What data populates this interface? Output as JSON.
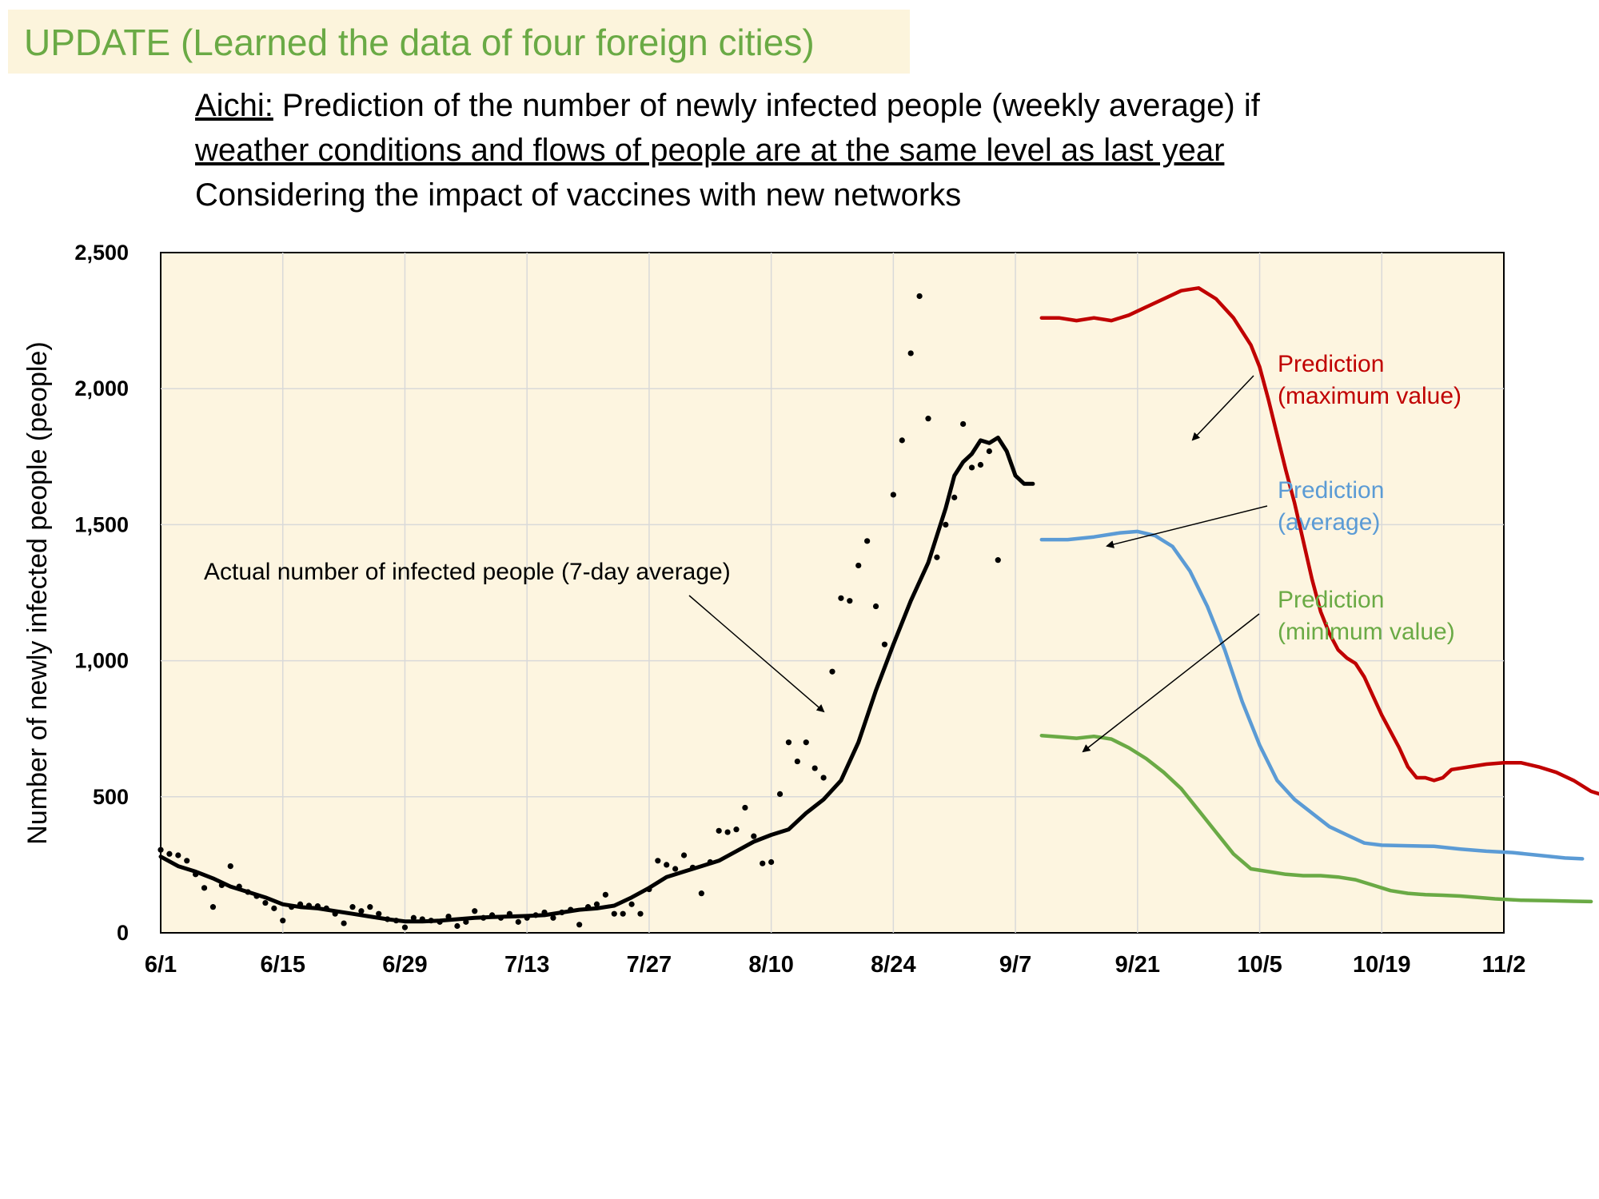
{
  "banner": {
    "text": "UPDATE (Learned the data of four foreign cities)",
    "color": "#6aaa45",
    "background": "#fcf4dc"
  },
  "title": {
    "line1_prefix": "Aichi:",
    "line1_rest": " Prediction of the number of newly infected people (weekly average) if",
    "line2": "weather conditions and flows of people are at the same level as last year",
    "line3": "Considering the impact of vaccines with new networks"
  },
  "chart_data": {
    "type": "line",
    "title": "",
    "xlabel": "",
    "ylabel": "Number of newly infected people (people)",
    "x_axis": {
      "start": "6/1",
      "end": "11/2",
      "ticks": [
        "6/1",
        "6/15",
        "6/29",
        "7/13",
        "7/27",
        "8/10",
        "8/24",
        "9/7",
        "9/21",
        "10/5",
        "10/19",
        "11/2"
      ]
    },
    "y_axis": {
      "range": [
        0,
        2500
      ],
      "ticks": [
        "0",
        "500",
        "1,000",
        "1,500",
        "2,000",
        "2,500"
      ]
    },
    "grid": true,
    "plot_background": "#fdf5e0",
    "annotations": {
      "actual": "Actual number of infected people (7-day average)",
      "max": [
        "Prediction",
        "(maximum value)"
      ],
      "avg": [
        "Prediction",
        "(average)"
      ],
      "min": [
        "Prediction",
        "(minimum value)"
      ]
    },
    "series": [
      {
        "key": "actual",
        "color": "#000000",
        "points": [
          [
            0,
            280
          ],
          [
            2,
            245
          ],
          [
            4,
            225
          ],
          [
            6,
            200
          ],
          [
            8,
            170
          ],
          [
            10,
            150
          ],
          [
            12,
            130
          ],
          [
            14,
            105
          ],
          [
            16,
            95
          ],
          [
            18,
            90
          ],
          [
            20,
            80
          ],
          [
            22,
            70
          ],
          [
            24,
            60
          ],
          [
            26,
            50
          ],
          [
            28,
            42
          ],
          [
            30,
            42
          ],
          [
            32,
            45
          ],
          [
            34,
            50
          ],
          [
            36,
            55
          ],
          [
            38,
            58
          ],
          [
            40,
            60
          ],
          [
            42,
            62
          ],
          [
            44,
            65
          ],
          [
            46,
            75
          ],
          [
            48,
            85
          ],
          [
            50,
            90
          ],
          [
            52,
            100
          ],
          [
            54,
            130
          ],
          [
            56,
            165
          ],
          [
            58,
            205
          ],
          [
            60,
            225
          ],
          [
            62,
            245
          ],
          [
            64,
            265
          ],
          [
            66,
            300
          ],
          [
            68,
            335
          ],
          [
            70,
            360
          ],
          [
            72,
            380
          ],
          [
            74,
            440
          ],
          [
            76,
            490
          ],
          [
            78,
            560
          ],
          [
            80,
            700
          ],
          [
            82,
            890
          ],
          [
            84,
            1060
          ],
          [
            86,
            1220
          ],
          [
            88,
            1360
          ],
          [
            90,
            1560
          ],
          [
            91,
            1680
          ],
          [
            92,
            1730
          ],
          [
            93,
            1760
          ],
          [
            94,
            1810
          ],
          [
            95,
            1800
          ],
          [
            96,
            1820
          ],
          [
            97,
            1770
          ],
          [
            98,
            1680
          ],
          [
            99,
            1650
          ],
          [
            100,
            1650
          ]
        ]
      },
      {
        "key": "max",
        "color": "#c00000",
        "points": [
          [
            101,
            2260
          ],
          [
            103,
            2260
          ],
          [
            105,
            2250
          ],
          [
            107,
            2260
          ],
          [
            109,
            2250
          ],
          [
            111,
            2270
          ],
          [
            113,
            2300
          ],
          [
            115,
            2330
          ],
          [
            117,
            2360
          ],
          [
            119,
            2370
          ],
          [
            121,
            2330
          ],
          [
            123,
            2260
          ],
          [
            125,
            2160
          ],
          [
            126,
            2080
          ],
          [
            127,
            1960
          ],
          [
            128,
            1830
          ],
          [
            129,
            1700
          ],
          [
            130,
            1580
          ],
          [
            131,
            1440
          ],
          [
            132,
            1300
          ],
          [
            133,
            1180
          ],
          [
            134,
            1100
          ],
          [
            135,
            1040
          ],
          [
            136,
            1010
          ],
          [
            137,
            990
          ],
          [
            138,
            940
          ],
          [
            139,
            870
          ],
          [
            140,
            800
          ],
          [
            141,
            740
          ],
          [
            142,
            680
          ],
          [
            143,
            610
          ],
          [
            144,
            570
          ],
          [
            145,
            570
          ],
          [
            146,
            560
          ],
          [
            147,
            570
          ],
          [
            148,
            600
          ],
          [
            150,
            610
          ],
          [
            152,
            620
          ],
          [
            154,
            625
          ],
          [
            156,
            625
          ],
          [
            158,
            610
          ],
          [
            160,
            590
          ],
          [
            162,
            560
          ],
          [
            164,
            520
          ],
          [
            166,
            500
          ],
          [
            167,
            500
          ]
        ]
      },
      {
        "key": "avg",
        "color": "#5b9bd5",
        "points": [
          [
            101,
            1445
          ],
          [
            104,
            1445
          ],
          [
            107,
            1455
          ],
          [
            110,
            1470
          ],
          [
            112,
            1475
          ],
          [
            114,
            1460
          ],
          [
            116,
            1420
          ],
          [
            118,
            1330
          ],
          [
            120,
            1200
          ],
          [
            122,
            1040
          ],
          [
            124,
            850
          ],
          [
            126,
            690
          ],
          [
            128,
            560
          ],
          [
            130,
            490
          ],
          [
            132,
            440
          ],
          [
            134,
            390
          ],
          [
            136,
            360
          ],
          [
            138,
            330
          ],
          [
            140,
            322
          ],
          [
            143,
            320
          ],
          [
            146,
            318
          ],
          [
            149,
            308
          ],
          [
            152,
            300
          ],
          [
            155,
            295
          ],
          [
            158,
            285
          ],
          [
            161,
            275
          ],
          [
            163,
            272
          ]
        ]
      },
      {
        "key": "min",
        "color": "#6aaa45",
        "points": [
          [
            101,
            725
          ],
          [
            103,
            720
          ],
          [
            105,
            715
          ],
          [
            107,
            722
          ],
          [
            109,
            712
          ],
          [
            111,
            680
          ],
          [
            113,
            640
          ],
          [
            115,
            590
          ],
          [
            117,
            530
          ],
          [
            119,
            450
          ],
          [
            121,
            370
          ],
          [
            123,
            290
          ],
          [
            125,
            235
          ],
          [
            127,
            225
          ],
          [
            129,
            215
          ],
          [
            131,
            210
          ],
          [
            133,
            210
          ],
          [
            135,
            205
          ],
          [
            137,
            195
          ],
          [
            139,
            175
          ],
          [
            141,
            155
          ],
          [
            143,
            145
          ],
          [
            145,
            140
          ],
          [
            147,
            138
          ],
          [
            149,
            135
          ],
          [
            151,
            130
          ],
          [
            153,
            125
          ],
          [
            156,
            120
          ],
          [
            159,
            118
          ],
          [
            162,
            116
          ],
          [
            164,
            115
          ]
        ]
      }
    ],
    "daily_points": [
      [
        0,
        305
      ],
      [
        1,
        290
      ],
      [
        2,
        285
      ],
      [
        3,
        265
      ],
      [
        4,
        215
      ],
      [
        5,
        165
      ],
      [
        6,
        95
      ],
      [
        7,
        175
      ],
      [
        8,
        245
      ],
      [
        9,
        170
      ],
      [
        10,
        150
      ],
      [
        11,
        135
      ],
      [
        12,
        110
      ],
      [
        13,
        90
      ],
      [
        14,
        45
      ],
      [
        15,
        95
      ],
      [
        16,
        105
      ],
      [
        17,
        100
      ],
      [
        18,
        98
      ],
      [
        19,
        90
      ],
      [
        20,
        70
      ],
      [
        21,
        35
      ],
      [
        22,
        95
      ],
      [
        23,
        80
      ],
      [
        24,
        95
      ],
      [
        25,
        70
      ],
      [
        26,
        50
      ],
      [
        27,
        45
      ],
      [
        28,
        20
      ],
      [
        29,
        55
      ],
      [
        30,
        50
      ],
      [
        31,
        45
      ],
      [
        32,
        40
      ],
      [
        33,
        60
      ],
      [
        34,
        25
      ],
      [
        35,
        40
      ],
      [
        36,
        80
      ],
      [
        37,
        55
      ],
      [
        38,
        65
      ],
      [
        39,
        55
      ],
      [
        40,
        70
      ],
      [
        41,
        40
      ],
      [
        42,
        55
      ],
      [
        43,
        65
      ],
      [
        44,
        75
      ],
      [
        45,
        55
      ],
      [
        46,
        75
      ],
      [
        47,
        85
      ],
      [
        48,
        30
      ],
      [
        49,
        95
      ],
      [
        50,
        105
      ],
      [
        51,
        140
      ],
      [
        52,
        70
      ],
      [
        53,
        70
      ],
      [
        54,
        105
      ],
      [
        55,
        70
      ],
      [
        56,
        160
      ],
      [
        57,
        265
      ],
      [
        58,
        250
      ],
      [
        59,
        235
      ],
      [
        60,
        285
      ],
      [
        61,
        240
      ],
      [
        62,
        145
      ],
      [
        63,
        260
      ],
      [
        64,
        375
      ],
      [
        65,
        370
      ],
      [
        66,
        380
      ],
      [
        67,
        460
      ],
      [
        68,
        355
      ],
      [
        69,
        255
      ],
      [
        70,
        260
      ],
      [
        71,
        510
      ],
      [
        72,
        700
      ],
      [
        73,
        630
      ],
      [
        74,
        700
      ],
      [
        75,
        605
      ],
      [
        76,
        570
      ],
      [
        77,
        960
      ],
      [
        78,
        1230
      ],
      [
        79,
        1220
      ],
      [
        80,
        1350
      ],
      [
        81,
        1440
      ],
      [
        82,
        1200
      ],
      [
        83,
        1060
      ],
      [
        84,
        1610
      ],
      [
        85,
        1810
      ],
      [
        86,
        2130
      ],
      [
        87,
        2340
      ],
      [
        88,
        1890
      ],
      [
        89,
        1380
      ],
      [
        90,
        1500
      ],
      [
        91,
        1600
      ],
      [
        92,
        1870
      ],
      [
        93,
        1710
      ],
      [
        94,
        1720
      ],
      [
        95,
        1770
      ],
      [
        96,
        1370
      ]
    ]
  }
}
